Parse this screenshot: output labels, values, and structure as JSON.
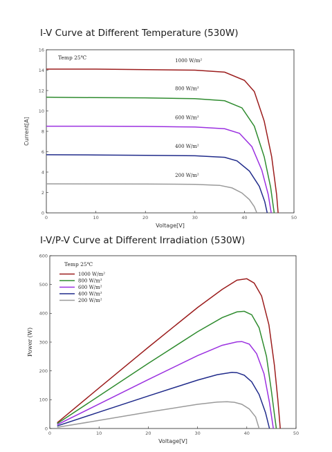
{
  "chart_data": [
    {
      "type": "line",
      "title": "I-V Curve at Different Temperature (530W)",
      "xlabel": "Voltage[V]",
      "ylabel": "Current[A]",
      "xlim": [
        0,
        50
      ],
      "ylim": [
        0,
        16
      ],
      "xticks": [
        0,
        10,
        20,
        30,
        40,
        50
      ],
      "yticks": [
        0,
        2,
        4,
        6,
        8,
        10,
        12,
        14,
        16
      ],
      "annotation": "Temp 25℃",
      "grid": false,
      "series": [
        {
          "name": "1000 W/m²",
          "color": "#9b1c1c",
          "isc": 14.1,
          "vmp": 40,
          "voc": 46.8,
          "points": [
            [
              0,
              14.1
            ],
            [
              10,
              14.1
            ],
            [
              20,
              14.05
            ],
            [
              30,
              14.0
            ],
            [
              36,
              13.8
            ],
            [
              40,
              13.0
            ],
            [
              42,
              11.9
            ],
            [
              44,
              9.0
            ],
            [
              45.5,
              5.5
            ],
            [
              46.5,
              1.8
            ],
            [
              46.8,
              0
            ]
          ]
        },
        {
          "name": "800 W/m²",
          "color": "#2e8b2e",
          "isc": 11.3,
          "vmp": 39.5,
          "voc": 46.0,
          "points": [
            [
              0,
              11.35
            ],
            [
              10,
              11.3
            ],
            [
              20,
              11.28
            ],
            [
              30,
              11.2
            ],
            [
              36,
              11.0
            ],
            [
              39.5,
              10.3
            ],
            [
              42,
              8.5
            ],
            [
              44,
              5.5
            ],
            [
              45.3,
              2.5
            ],
            [
              46.0,
              0
            ]
          ]
        },
        {
          "name": "600 W/m²",
          "color": "#9b30e0",
          "isc": 8.5,
          "vmp": 39,
          "voc": 45.4,
          "points": [
            [
              0,
              8.5
            ],
            [
              10,
              8.5
            ],
            [
              20,
              8.48
            ],
            [
              30,
              8.42
            ],
            [
              36,
              8.25
            ],
            [
              39,
              7.8
            ],
            [
              41.5,
              6.5
            ],
            [
              43.5,
              4.2
            ],
            [
              44.8,
              1.8
            ],
            [
              45.4,
              0
            ]
          ]
        },
        {
          "name": "400 W/m²",
          "color": "#1f2a8a",
          "isc": 5.65,
          "vmp": 38,
          "voc": 44.6,
          "points": [
            [
              0,
              5.7
            ],
            [
              10,
              5.68
            ],
            [
              20,
              5.65
            ],
            [
              30,
              5.6
            ],
            [
              36,
              5.45
            ],
            [
              38.5,
              5.1
            ],
            [
              41,
              4.1
            ],
            [
              43,
              2.6
            ],
            [
              44.1,
              1.1
            ],
            [
              44.6,
              0
            ]
          ]
        },
        {
          "name": "200 W/m²",
          "color": "#9a9a9a",
          "isc": 2.85,
          "vmp": 36,
          "voc": 42.5,
          "points": [
            [
              0,
              2.85
            ],
            [
              10,
              2.84
            ],
            [
              20,
              2.83
            ],
            [
              30,
              2.8
            ],
            [
              35,
              2.7
            ],
            [
              37.5,
              2.45
            ],
            [
              39.5,
              1.95
            ],
            [
              41,
              1.3
            ],
            [
              42,
              0.6
            ],
            [
              42.5,
              0
            ]
          ]
        }
      ]
    },
    {
      "type": "line",
      "title": "I-V/P-V Curve at Different Irradiation (530W)",
      "xlabel": "Voltage[V]",
      "ylabel": "Power (W)",
      "xlim": [
        0,
        50
      ],
      "ylim": [
        0,
        600
      ],
      "xticks": [
        0,
        10,
        20,
        30,
        40,
        50
      ],
      "yticks": [
        0,
        100,
        200,
        300,
        400,
        500,
        600
      ],
      "annotation": "Temp 25℃",
      "legend": "top-left",
      "grid": false,
      "series": [
        {
          "name": "1000 W/m²",
          "color": "#9b1c1c",
          "points": [
            [
              1.5,
              20
            ],
            [
              10,
              141
            ],
            [
              20,
              282
            ],
            [
              30,
              420
            ],
            [
              35,
              483
            ],
            [
              38,
              515
            ],
            [
              40,
              520
            ],
            [
              41.5,
              505
            ],
            [
              43,
              460
            ],
            [
              44.5,
              360
            ],
            [
              45.6,
              220
            ],
            [
              46.3,
              100
            ],
            [
              46.8,
              0
            ]
          ]
        },
        {
          "name": "800 W/m²",
          "color": "#2e8b2e",
          "points": [
            [
              1.5,
              17
            ],
            [
              10,
              113
            ],
            [
              20,
              226
            ],
            [
              30,
              336
            ],
            [
              35,
              385
            ],
            [
              38,
              405
            ],
            [
              39.5,
              407
            ],
            [
              41,
              395
            ],
            [
              42.5,
              350
            ],
            [
              44,
              250
            ],
            [
              45,
              130
            ],
            [
              45.6,
              50
            ],
            [
              46.0,
              0
            ]
          ]
        },
        {
          "name": "600 W/m²",
          "color": "#9b30e0",
          "points": [
            [
              1.5,
              13
            ],
            [
              10,
              85
            ],
            [
              20,
              170
            ],
            [
              30,
              253
            ],
            [
              35,
              289
            ],
            [
              38,
              301
            ],
            [
              39,
              302
            ],
            [
              40.5,
              293
            ],
            [
              42,
              260
            ],
            [
              43.5,
              190
            ],
            [
              44.6,
              90
            ],
            [
              45.4,
              0
            ]
          ]
        },
        {
          "name": "400 W/m²",
          "color": "#1f2a8a",
          "points": [
            [
              1.5,
              9
            ],
            [
              10,
              57
            ],
            [
              20,
              113
            ],
            [
              30,
              168
            ],
            [
              34,
              187
            ],
            [
              37,
              195
            ],
            [
              38,
              194
            ],
            [
              39.5,
              185
            ],
            [
              41,
              162
            ],
            [
              42.5,
              118
            ],
            [
              43.8,
              55
            ],
            [
              44.6,
              0
            ]
          ]
        },
        {
          "name": "200 W/m²",
          "color": "#9a9a9a",
          "points": [
            [
              1.5,
              4
            ],
            [
              10,
              28
            ],
            [
              20,
              57
            ],
            [
              30,
              84
            ],
            [
              34,
              92
            ],
            [
              36,
              93
            ],
            [
              37.5,
              91
            ],
            [
              39,
              84
            ],
            [
              40.5,
              68
            ],
            [
              41.8,
              40
            ],
            [
              42.5,
              0
            ]
          ]
        }
      ]
    }
  ]
}
